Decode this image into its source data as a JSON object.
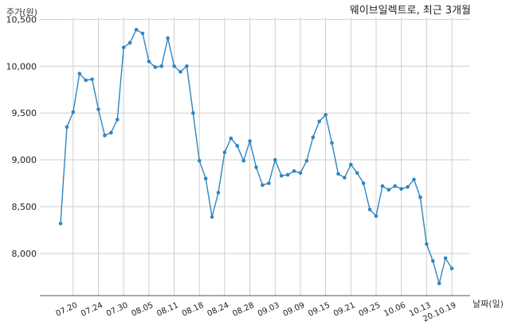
{
  "chart_data": {
    "type": "line",
    "title": "웨이브일렉트로, 최근 3개월",
    "ylabel": "주가(원)",
    "xlabel": "날짜(일)",
    "ylim": [
      7550,
      10520
    ],
    "y_ticks": [
      8000,
      8500,
      9000,
      9500,
      10000,
      10500
    ],
    "y_tick_labels": [
      "8,000",
      "8,500",
      "9,000",
      "9,500",
      "10,000",
      "10,500"
    ],
    "grid": true,
    "color": "#2e86c1",
    "x_tick_labels": [
      "07.20",
      "07.24",
      "07.30",
      "08.05",
      "08.11",
      "08.18",
      "08.24",
      "08.28",
      "09.03",
      "09.09",
      "09.15",
      "09.21",
      "09.25",
      "10.06",
      "10.13",
      "20.10.19"
    ],
    "x_tick_index": [
      2,
      6,
      10,
      14,
      18,
      22,
      26,
      30,
      34,
      38,
      42,
      46,
      50,
      54,
      58,
      62
    ],
    "series": [
      {
        "values": [
          8320,
          9350,
          9510,
          9920,
          9850,
          9860,
          9540,
          9260,
          9290,
          9430,
          10200,
          10250,
          10390,
          10350,
          10050,
          9990,
          10000,
          10300,
          10000,
          9940,
          10000,
          9500,
          8990,
          8800,
          8390,
          8650,
          9080,
          9230,
          9150,
          8990,
          9200,
          8920,
          8730,
          8750,
          9000,
          8830,
          8840,
          8880,
          8860,
          8990,
          9240,
          9410,
          9480,
          9180,
          8850,
          8810,
          8950,
          8860,
          8750,
          8470,
          8400,
          8720,
          8680,
          8720,
          8690,
          8710,
          8790,
          8600,
          8100,
          7920,
          7680,
          7950,
          7840
        ]
      }
    ]
  }
}
